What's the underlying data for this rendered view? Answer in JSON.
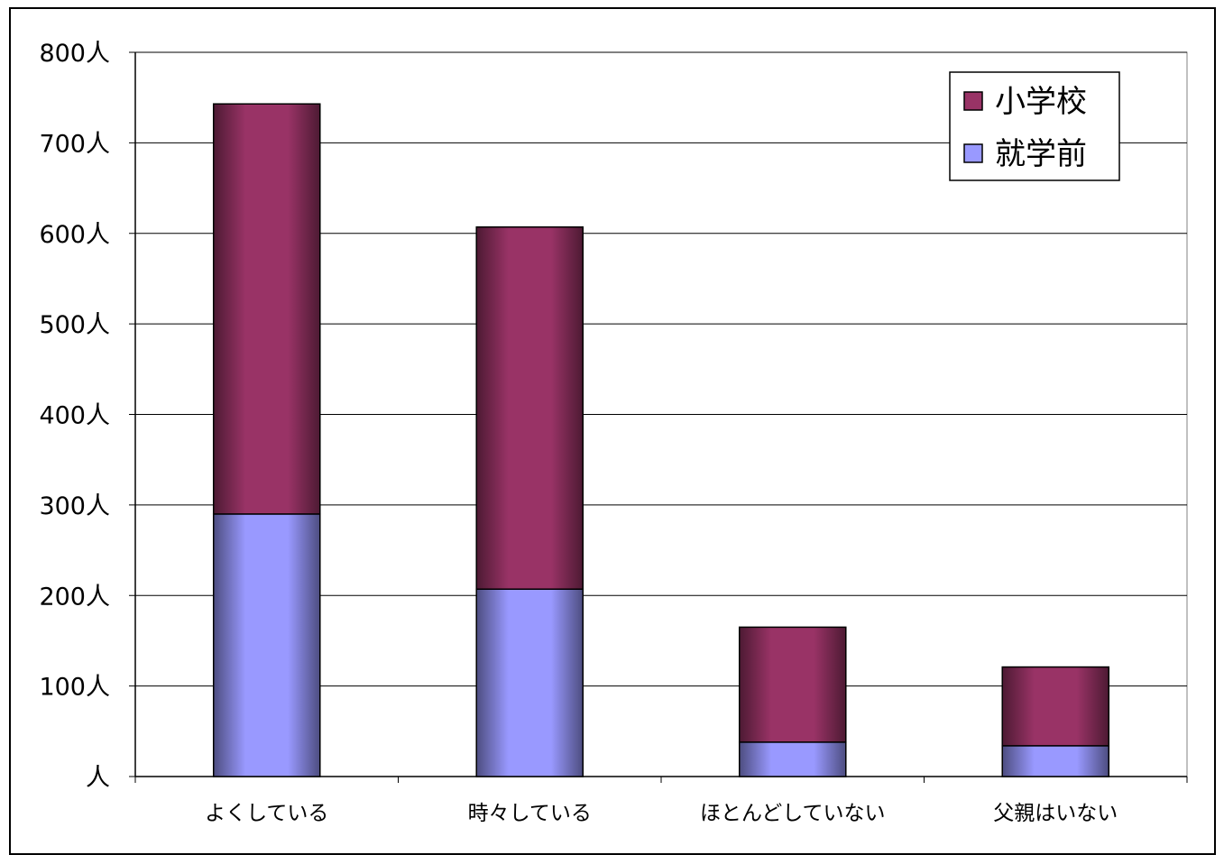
{
  "chart_data": {
    "type": "bar",
    "stacked": true,
    "categories": [
      "よくしている",
      "時々している",
      "ほとんどしていない",
      "父親はいない"
    ],
    "series": [
      {
        "name": "就学前",
        "values": [
          290,
          207,
          38,
          34
        ],
        "color": "#9999ff"
      },
      {
        "name": "小学校",
        "values": [
          453,
          400,
          127,
          87
        ],
        "color": "#993366"
      }
    ],
    "yticks": [
      {
        "value": 0,
        "label": "人"
      },
      {
        "value": 100,
        "label": "100人"
      },
      {
        "value": 200,
        "label": "200人"
      },
      {
        "value": 300,
        "label": "300人"
      },
      {
        "value": 400,
        "label": "400人"
      },
      {
        "value": 500,
        "label": "500人"
      },
      {
        "value": 600,
        "label": "600人"
      },
      {
        "value": 700,
        "label": "700人"
      },
      {
        "value": 800,
        "label": "800人"
      }
    ],
    "ylim": [
      0,
      800
    ],
    "grid": true,
    "legend": {
      "position": "top-right",
      "order": [
        "小学校",
        "就学前"
      ]
    },
    "title": "",
    "xlabel": "",
    "ylabel": ""
  }
}
